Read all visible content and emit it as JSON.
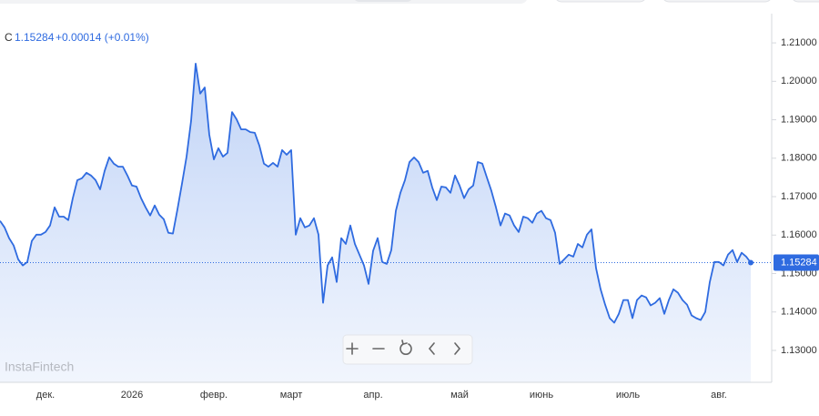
{
  "chart_data": {
    "type": "line",
    "series_label": "C",
    "last_value": 1.15284,
    "change_label": "+0.00014 (+0.01%)",
    "watermark": "InstaFintech",
    "color": "#2f6be0",
    "area": true,
    "categories": [
      null,
      null,
      null,
      null,
      null,
      null,
      null,
      null,
      null,
      null,
      "дек.",
      null,
      null,
      null,
      null,
      null,
      null,
      null,
      null,
      null,
      null,
      null,
      null,
      null,
      null,
      null,
      null,
      null,
      null,
      "2026",
      null,
      null,
      null,
      null,
      null,
      null,
      null,
      null,
      null,
      null,
      null,
      null,
      null,
      null,
      null,
      null,
      null,
      "февр.",
      null,
      null,
      null,
      null,
      null,
      null,
      null,
      null,
      null,
      null,
      null,
      null,
      null,
      null,
      null,
      null,
      "март",
      null,
      null,
      null,
      null,
      null,
      null,
      null,
      null,
      null,
      null,
      null,
      null,
      null,
      null,
      null,
      null,
      null,
      "апр.",
      null,
      null,
      null,
      null,
      null,
      null,
      null,
      null,
      null,
      null,
      null,
      null,
      null,
      null,
      null,
      null,
      null,
      null,
      "май",
      null,
      null,
      null,
      null,
      null,
      null,
      null,
      null,
      null,
      null,
      null,
      null,
      null,
      null,
      null,
      null,
      null,
      "июнь",
      null,
      null,
      null,
      null,
      null,
      null,
      null,
      null,
      null,
      null,
      null,
      null,
      null,
      null,
      null,
      null,
      null,
      null,
      "июль",
      null,
      null,
      null,
      null,
      null,
      null,
      null,
      null,
      null,
      null,
      null,
      null,
      null,
      null,
      null,
      null,
      null,
      null,
      null,
      "авг.",
      null,
      null,
      null,
      null,
      null,
      null,
      null
    ],
    "values": [
      1.1637,
      1.162,
      1.1592,
      1.1573,
      1.1537,
      1.1521,
      1.153,
      1.1585,
      1.1601,
      1.1601,
      1.1608,
      1.1625,
      1.1672,
      1.1648,
      1.1648,
      1.1639,
      1.1696,
      1.1743,
      1.1748,
      1.1762,
      1.1755,
      1.1743,
      1.1719,
      1.1767,
      1.1802,
      1.1786,
      1.1778,
      1.1778,
      1.1755,
      1.1729,
      1.1726,
      1.1696,
      1.1672,
      1.1651,
      1.1677,
      1.1653,
      1.1641,
      1.1606,
      1.1604,
      1.1667,
      1.1734,
      1.1804,
      1.1897,
      1.2046,
      1.1968,
      1.1984,
      1.1861,
      1.1797,
      1.1826,
      1.1804,
      1.1814,
      1.192,
      1.1901,
      1.1875,
      1.1875,
      1.1868,
      1.1866,
      1.1833,
      1.1786,
      1.1778,
      1.1788,
      1.1778,
      1.1821,
      1.1809,
      1.1821,
      1.1601,
      1.1644,
      1.162,
      1.1625,
      1.1644,
      1.1601,
      1.1424,
      1.1521,
      1.1542,
      1.1478,
      1.1592,
      1.1577,
      1.1625,
      1.1577,
      1.1549,
      1.1521,
      1.1473,
      1.1559,
      1.1592,
      1.153,
      1.1525,
      1.1561,
      1.1663,
      1.171,
      1.1743,
      1.179,
      1.1802,
      1.179,
      1.1762,
      1.1767,
      1.1724,
      1.1691,
      1.1726,
      1.1724,
      1.171,
      1.1755,
      1.1729,
      1.1696,
      1.1719,
      1.1729,
      1.179,
      1.1786,
      1.175,
      1.1715,
      1.1672,
      1.1625,
      1.1656,
      1.1651,
      1.1625,
      1.1608,
      1.1648,
      1.1644,
      1.1632,
      1.1656,
      1.1663,
      1.1644,
      1.1639,
      1.1606,
      1.1525,
      1.1537,
      1.1549,
      1.1544,
      1.1577,
      1.1568,
      1.1601,
      1.1615,
      1.1514,
      1.1459,
      1.1419,
      1.1384,
      1.1372,
      1.1395,
      1.1431,
      1.1431,
      1.1384,
      1.1431,
      1.1443,
      1.1438,
      1.1417,
      1.1424,
      1.1436,
      1.1395,
      1.1431,
      1.1459,
      1.145,
      1.1431,
      1.1419,
      1.1391,
      1.1384,
      1.1379,
      1.14,
      1.1478,
      1.153,
      1.153,
      1.1521,
      1.1549,
      1.1561,
      1.153,
      1.1554,
      1.1544,
      1.15284
    ],
    "ylim": [
      1.1217,
      1.2176
    ],
    "yticks": [
      {
        "value": 1.13,
        "label": "1.13000"
      },
      {
        "value": 1.14,
        "label": "1.14000"
      },
      {
        "value": 1.15,
        "label": "1.15000"
      },
      {
        "value": 1.16,
        "label": "1.16000"
      },
      {
        "value": 1.17,
        "label": "1.17000"
      },
      {
        "value": 1.18,
        "label": "1.18000"
      },
      {
        "value": 1.19,
        "label": "1.19000"
      },
      {
        "value": 1.2,
        "label": "1.20000"
      },
      {
        "value": 1.21,
        "label": "1.21000"
      }
    ]
  }
}
